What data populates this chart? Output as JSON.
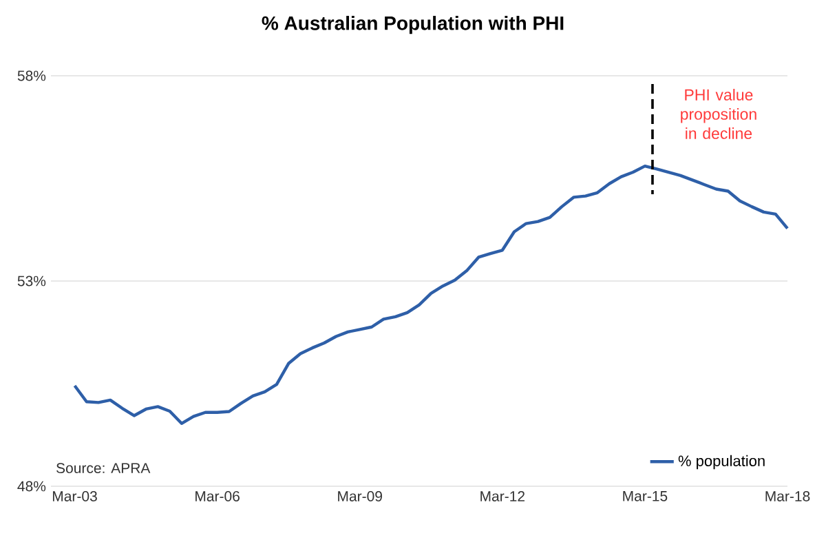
{
  "chart_data": {
    "type": "line",
    "title": "% Australian Population with PHI",
    "x": [
      "2003-03",
      "2003-06",
      "2003-09",
      "2003-12",
      "2004-03",
      "2004-06",
      "2004-09",
      "2004-12",
      "2005-03",
      "2005-06",
      "2005-09",
      "2005-12",
      "2006-03",
      "2006-06",
      "2006-09",
      "2006-12",
      "2007-03",
      "2007-06",
      "2007-09",
      "2007-12",
      "2008-03",
      "2008-06",
      "2008-09",
      "2008-12",
      "2009-03",
      "2009-06",
      "2009-09",
      "2009-12",
      "2010-03",
      "2010-06",
      "2010-09",
      "2010-12",
      "2011-03",
      "2011-06",
      "2011-09",
      "2011-12",
      "2012-03",
      "2012-06",
      "2012-09",
      "2012-12",
      "2013-03",
      "2013-06",
      "2013-09",
      "2013-12",
      "2014-03",
      "2014-06",
      "2014-09",
      "2014-12",
      "2015-03",
      "2015-06",
      "2015-09",
      "2015-12",
      "2016-03",
      "2016-06",
      "2016-09",
      "2016-12",
      "2017-03",
      "2017-06",
      "2017-09",
      "2017-12",
      "2018-03"
    ],
    "series": [
      {
        "name": "% population",
        "color": "#2e5fa8",
        "values": [
          50.45,
          50.06,
          50.04,
          50.1,
          49.9,
          49.72,
          49.88,
          49.94,
          49.83,
          49.53,
          49.7,
          49.8,
          49.8,
          49.82,
          50.02,
          50.2,
          50.3,
          50.48,
          50.99,
          51.23,
          51.37,
          51.49,
          51.65,
          51.76,
          51.82,
          51.88,
          52.07,
          52.13,
          52.23,
          52.42,
          52.7,
          52.88,
          53.02,
          53.25,
          53.58,
          53.67,
          53.75,
          54.2,
          54.4,
          54.45,
          54.55,
          54.81,
          55.04,
          55.07,
          55.15,
          55.37,
          55.54,
          55.65,
          55.8,
          55.73,
          55.65,
          55.57,
          55.46,
          55.35,
          55.24,
          55.19,
          54.95,
          54.81,
          54.68,
          54.63,
          54.28
        ]
      }
    ],
    "xlim": [
      "2002-09",
      "2018-03"
    ],
    "xticks": [
      {
        "value": "2003-03",
        "label": "Mar-03"
      },
      {
        "value": "2006-03",
        "label": "Mar-06"
      },
      {
        "value": "2009-03",
        "label": "Mar-09"
      },
      {
        "value": "2012-03",
        "label": "Mar-12"
      },
      {
        "value": "2015-03",
        "label": "Mar-15"
      },
      {
        "value": "2018-03",
        "label": "Mar-18"
      }
    ],
    "ylim": [
      48,
      58
    ],
    "yticks": [
      {
        "value": 48,
        "label": "48%"
      },
      {
        "value": 53,
        "label": "53%"
      },
      {
        "value": 58,
        "label": "58%"
      }
    ],
    "grid": "y",
    "legend": "bottom right",
    "ref_lines": [
      {
        "axis": "x",
        "value": "2015-05",
        "label": "PHI value proposition in decline",
        "color": "#000000",
        "line_style": "dashed"
      }
    ],
    "annotations": [
      "Source: APRA"
    ]
  }
}
